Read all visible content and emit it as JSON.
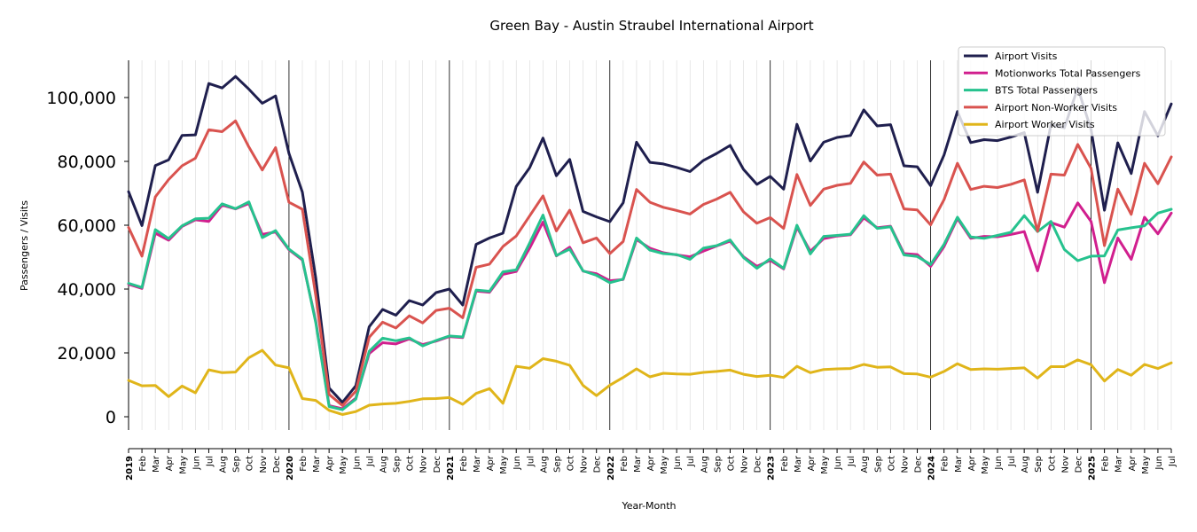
{
  "chart_data": {
    "type": "line",
    "title": "Green Bay - Austin Straubel International Airport",
    "xlabel": "Year-Month",
    "ylabel": "Passengers / Visits",
    "ylim": [
      -10000,
      112000
    ],
    "yticks": [
      0,
      20000,
      40000,
      60000,
      80000,
      100000
    ],
    "ytick_labels": [
      "0",
      "20,000",
      "40,000",
      "60,000",
      "80,000",
      "100,000"
    ],
    "grid": "vertical monthly lines, year boundaries darker",
    "legend_position": "top-right",
    "x": [
      "2019-01",
      "2019-02",
      "2019-03",
      "2019-04",
      "2019-05",
      "2019-06",
      "2019-07",
      "2019-08",
      "2019-09",
      "2019-10",
      "2019-11",
      "2019-12",
      "2020-01",
      "2020-02",
      "2020-03",
      "2020-04",
      "2020-05",
      "2020-06",
      "2020-07",
      "2020-08",
      "2020-09",
      "2020-10",
      "2020-11",
      "2020-12",
      "2021-01",
      "2021-02",
      "2021-03",
      "2021-04",
      "2021-05",
      "2021-06",
      "2021-07",
      "2021-08",
      "2021-09",
      "2021-10",
      "2021-11",
      "2021-12",
      "2022-01",
      "2022-02",
      "2022-03",
      "2022-04",
      "2022-05",
      "2022-06",
      "2022-07",
      "2022-08",
      "2022-09",
      "2022-10",
      "2022-11",
      "2022-12",
      "2023-01",
      "2023-02",
      "2023-03",
      "2023-04",
      "2023-05",
      "2023-06",
      "2023-07",
      "2023-08",
      "2023-09",
      "2023-10",
      "2023-11",
      "2023-12",
      "2024-01",
      "2024-02",
      "2024-03",
      "2024-04",
      "2024-05",
      "2024-06",
      "2024-07",
      "2024-08",
      "2024-09",
      "2024-10",
      "2024-11",
      "2024-12",
      "2025-01",
      "2025-02",
      "2025-03",
      "2025-04",
      "2025-05",
      "2025-06",
      "2025-07"
    ],
    "tick_labels": [
      "2019",
      "Feb",
      "Mar",
      "Apr",
      "May",
      "Jun",
      "Jul",
      "Aug",
      "Sep",
      "Oct",
      "Nov",
      "Dec",
      "2020",
      "Feb",
      "Mar",
      "Apr",
      "May",
      "Jun",
      "Jul",
      "Aug",
      "Sep",
      "Oct",
      "Nov",
      "Dec",
      "2021",
      "Feb",
      "Mar",
      "Apr",
      "May",
      "Jun",
      "Jul",
      "Aug",
      "Sep",
      "Oct",
      "Nov",
      "Dec",
      "2022",
      "Feb",
      "Mar",
      "Apr",
      "May",
      "Jun",
      "Jul",
      "Aug",
      "Sep",
      "Oct",
      "Nov",
      "Dec",
      "2023",
      "Feb",
      "Mar",
      "Apr",
      "May",
      "Jun",
      "Jul",
      "Aug",
      "Sep",
      "Oct",
      "Nov",
      "Dec",
      "2024",
      "Feb",
      "Mar",
      "Apr",
      "May",
      "Jun",
      "Jul",
      "Aug",
      "Sep",
      "Oct",
      "Nov",
      "Dec",
      "2025",
      "Feb",
      "Mar",
      "Apr",
      "May",
      "Jun",
      "Jul"
    ],
    "series": [
      {
        "name": "Airport Visits",
        "color": "#1f1f4e",
        "values": [
          70500,
          59900,
          78700,
          80500,
          88100,
          88300,
          104400,
          103000,
          106600,
          102600,
          98200,
          100500,
          82500,
          70400,
          43500,
          9000,
          4500,
          9700,
          28200,
          33600,
          31800,
          36400,
          35000,
          38900,
          40000,
          35000,
          54000,
          56000,
          57500,
          72100,
          78000,
          87300,
          75500,
          80600,
          64300,
          62600,
          61100,
          67000,
          86000,
          79700,
          79200,
          78100,
          76800,
          80300,
          82500,
          85000,
          77500,
          72800,
          75300,
          71300,
          91600,
          80100,
          86000,
          87500,
          88100,
          96100,
          91100,
          91500,
          78600,
          78300,
          72400,
          82000,
          95600,
          85900,
          86800,
          86500,
          87600,
          89000,
          70300,
          91500,
          90500,
          103000,
          90000,
          64700,
          85800,
          76200,
          95600,
          88000,
          98000
        ]
      },
      {
        "name": "Motionworks Total Passengers",
        "color": "#d11f8e",
        "values": [
          41500,
          40200,
          57500,
          55300,
          59600,
          61700,
          61200,
          66300,
          65100,
          66800,
          57100,
          57900,
          52300,
          49100,
          30000,
          3500,
          2500,
          5800,
          19800,
          23200,
          22800,
          24400,
          22600,
          23700,
          25100,
          24800,
          39400,
          39000,
          44600,
          45500,
          52800,
          61000,
          50400,
          53100,
          45600,
          44800,
          42600,
          43000,
          55500,
          52800,
          51400,
          50700,
          50100,
          51900,
          53500,
          55000,
          50100,
          47100,
          49000,
          46300,
          59400,
          51800,
          55800,
          56600,
          57000,
          62300,
          59200,
          59700,
          51100,
          50800,
          47100,
          53300,
          62100,
          55900,
          56500,
          56400,
          57100,
          58000,
          45700,
          60800,
          59400,
          67000,
          61200,
          42000,
          56000,
          49300,
          62500,
          57300,
          63800
        ]
      },
      {
        "name": "BTS Total Passengers",
        "color": "#26c28e",
        "values": [
          41800,
          40500,
          58600,
          55800,
          59800,
          62000,
          62200,
          66700,
          65200,
          67300,
          56100,
          58300,
          52500,
          49400,
          29500,
          3200,
          2200,
          5500,
          20500,
          24600,
          23800,
          24700,
          22200,
          23900,
          25300,
          25000,
          39700,
          39300,
          45400,
          46000,
          54400,
          63200,
          50500,
          52500,
          45700,
          44300,
          42000,
          43100,
          56000,
          52200,
          51100,
          50800,
          49300,
          52800,
          53600,
          55400,
          49900,
          46500,
          49500,
          46500,
          60000,
          51000,
          56500,
          56800,
          57200,
          63000,
          59000,
          59500,
          50700,
          50200,
          47700,
          54000,
          62500,
          56300,
          55900,
          56800,
          57800,
          63000,
          58000,
          61200,
          52400,
          48900,
          50300,
          50400,
          58500,
          59200,
          59800,
          63800,
          65000
        ]
      },
      {
        "name": "Airport Non-Worker Visits",
        "color": "#d9534f",
        "values": [
          59300,
          50300,
          68900,
          74300,
          78600,
          81000,
          89900,
          89300,
          92700,
          84500,
          77300,
          84300,
          67200,
          65000,
          38000,
          7000,
          3500,
          8000,
          24900,
          29600,
          27800,
          31600,
          29400,
          33300,
          34000,
          31000,
          46800,
          47800,
          53300,
          56600,
          62900,
          69200,
          58200,
          64700,
          54500,
          56000,
          51100,
          54900,
          71200,
          67200,
          65600,
          64600,
          63500,
          66500,
          68200,
          70300,
          64200,
          60600,
          62400,
          59000,
          75900,
          66200,
          71300,
          72500,
          73100,
          79800,
          75700,
          76000,
          65100,
          64800,
          60100,
          68000,
          79400,
          71200,
          72200,
          71800,
          72800,
          74200,
          58100,
          76000,
          75700,
          85300,
          77800,
          53600,
          71300,
          63400,
          79400,
          73000,
          81400
        ]
      },
      {
        "name": "Airport Worker Visits",
        "color": "#e0b51a",
        "values": [
          11400,
          9700,
          9800,
          6300,
          9600,
          7500,
          14700,
          13800,
          14000,
          18500,
          20800,
          16200,
          15300,
          5700,
          5100,
          2000,
          700,
          1600,
          3600,
          4000,
          4200,
          4800,
          5600,
          5700,
          6000,
          3900,
          7300,
          8800,
          4200,
          15800,
          15200,
          18200,
          17400,
          16100,
          9800,
          6600,
          9900,
          12300,
          15000,
          12500,
          13600,
          13400,
          13300,
          13900,
          14200,
          14600,
          13300,
          12600,
          13000,
          12300,
          15800,
          13800,
          14800,
          15000,
          15100,
          16400,
          15500,
          15600,
          13500,
          13400,
          12400,
          14200,
          16600,
          14800,
          15000,
          14900,
          15100,
          15300,
          12100,
          15700,
          15700,
          17800,
          16300,
          11200,
          14800,
          13000,
          16400,
          15100,
          16900
        ]
      }
    ]
  }
}
